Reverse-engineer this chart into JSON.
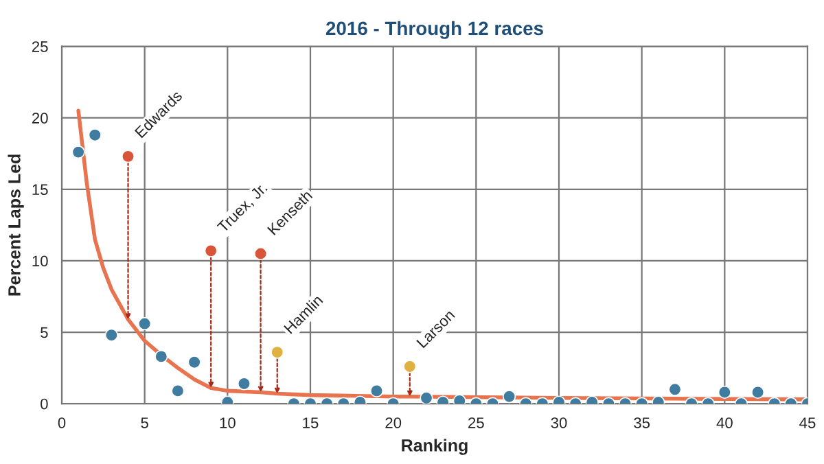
{
  "chart_data": {
    "type": "scatter",
    "title": "2016 - Through 12 races",
    "xlabel": "Ranking",
    "ylabel": "Percent Laps Led",
    "xlim": [
      0,
      45
    ],
    "ylim": [
      0,
      25
    ],
    "xticks": [
      0,
      5,
      10,
      15,
      20,
      25,
      30,
      35,
      40,
      45
    ],
    "yticks": [
      0,
      5,
      10,
      15,
      20,
      25
    ],
    "grid": true,
    "marker": "circle",
    "series": [
      {
        "type": "line",
        "color": "#e8734f",
        "marker": "none",
        "x": [
          1,
          1.5,
          2,
          2.5,
          3,
          4,
          5,
          6,
          7,
          8,
          9,
          10,
          12,
          13,
          15,
          20,
          21,
          30,
          45
        ],
        "values": [
          20.5,
          15.5,
          11.5,
          9.5,
          8,
          5.9,
          4.4,
          3.4,
          2.5,
          1.7,
          1.1,
          0.9,
          0.8,
          0.7,
          0.6,
          0.5,
          0.5,
          0.4,
          0.3
        ]
      },
      {
        "color": "#3f7ca0",
        "x": [
          1,
          2,
          3,
          5,
          6,
          7,
          8,
          10,
          11,
          14,
          15,
          16,
          17,
          18,
          19,
          20,
          22,
          23,
          24,
          25,
          26,
          27,
          28,
          29,
          30,
          31,
          32,
          33,
          34,
          35,
          36,
          37,
          38,
          39,
          40,
          41,
          42,
          43,
          44,
          45
        ],
        "values": [
          17.6,
          18.8,
          4.8,
          5.6,
          3.3,
          0.9,
          2.9,
          0.1,
          1.4,
          0,
          0,
          0,
          0,
          0.1,
          0.9,
          0,
          0.4,
          0.1,
          0.2,
          0,
          0,
          0.5,
          0,
          0,
          0.1,
          0,
          0.1,
          0,
          0,
          0,
          0.1,
          1.0,
          0,
          0,
          0.8,
          0,
          0.8,
          0,
          0,
          0
        ]
      },
      {
        "color": "#d9553a",
        "x": [
          4,
          9,
          12
        ],
        "values": [
          17.3,
          10.7,
          10.5
        ]
      },
      {
        "color": "#e0b040",
        "x": [
          13,
          21
        ],
        "values": [
          3.6,
          2.6
        ]
      }
    ],
    "annotations": [
      {
        "text": "Edwards",
        "x": 4,
        "y": 17.3
      },
      {
        "text": "Truex, Jr.",
        "x": 9,
        "y": 10.7
      },
      {
        "text": "Kenseth",
        "x": 12,
        "y": 10.5
      },
      {
        "text": "Hamlin",
        "x": 13,
        "y": 3.6
      },
      {
        "text": "Larson",
        "x": 21,
        "y": 2.6
      }
    ]
  }
}
